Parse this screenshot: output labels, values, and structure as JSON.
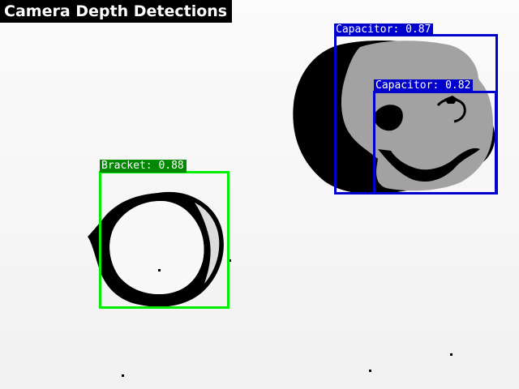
{
  "title": "Camera Depth Detections",
  "colors": {
    "background": "#f7f7f7",
    "depth_far": "#000000",
    "depth_mid": "#a2a2a2",
    "bracket": "#00ee00",
    "capacitor": "#0000cc"
  },
  "detections": [
    {
      "label": "Capacitor: 0.87",
      "class": "Capacitor",
      "confidence": 0.87
    },
    {
      "label": "Capacitor: 0.82",
      "class": "Capacitor",
      "confidence": 0.82
    },
    {
      "label": "Bracket: 0.88",
      "class": "Bracket",
      "confidence": 0.88
    }
  ]
}
